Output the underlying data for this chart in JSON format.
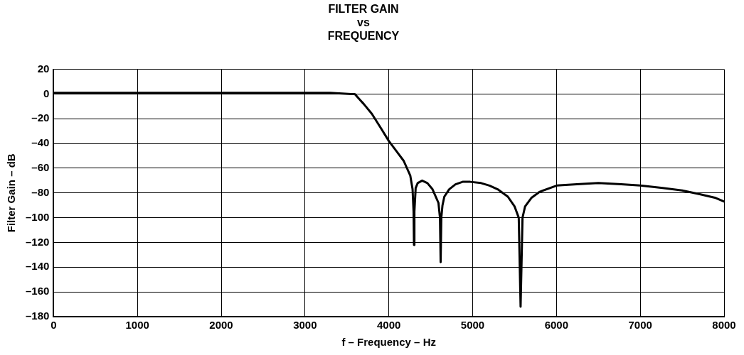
{
  "chart_data": {
    "type": "line",
    "title": "FILTER GAIN\nvs\nFREQUENCY",
    "xlabel": "f – Frequency – Hz",
    "ylabel": "Filter Gain – dB",
    "series": [
      {
        "color": "#000000",
        "x": [
          0,
          500,
          1000,
          2000,
          3000,
          3300,
          3550,
          3594,
          3700,
          3797,
          3900,
          4000,
          4100,
          4177,
          4256,
          4283,
          4295,
          4300,
          4305,
          4320,
          4344,
          4397,
          4460,
          4521,
          4592,
          4610,
          4618,
          4626,
          4640,
          4662,
          4720,
          4795,
          4880,
          4971,
          5100,
          5200,
          5298,
          5420,
          5501,
          5550,
          5572,
          5595,
          5625,
          5700,
          5801,
          6004,
          6243,
          6500,
          6773,
          7000,
          7267,
          7500,
          7709,
          7900,
          8000
        ],
        "values": [
          1,
          1,
          1,
          1,
          1,
          1,
          0,
          0,
          -8,
          -16,
          -27,
          -38,
          -47,
          -54,
          -66,
          -77,
          -95,
          -122,
          -95,
          -76,
          -72,
          -70,
          -72,
          -77,
          -88,
          -100,
          -136,
          -100,
          -90,
          -83,
          -77,
          -73,
          -71,
          -71,
          -72,
          -74,
          -77,
          -83,
          -91,
          -100,
          -172,
          -100,
          -91,
          -84,
          -79,
          -74,
          -73,
          -72,
          -73,
          -74,
          -76,
          -78,
          -81,
          -84,
          -87
        ]
      }
    ],
    "xlim": [
      0,
      8000
    ],
    "xticks": [
      0,
      1000,
      2000,
      3000,
      4000,
      5000,
      6000,
      7000,
      8000
    ],
    "ylim": [
      -180,
      20
    ],
    "yticks": [
      {
        "value": -180,
        "label": "–180"
      },
      {
        "value": -160,
        "label": "–160"
      },
      {
        "value": -140,
        "label": "–140"
      },
      {
        "value": -120,
        "label": "–120"
      },
      {
        "value": -100,
        "label": "–100"
      },
      {
        "value": -80,
        "label": "–80"
      },
      {
        "value": -60,
        "label": "–60"
      },
      {
        "value": -40,
        "label": "–40"
      },
      {
        "value": -20,
        "label": "–20"
      },
      0,
      20
    ],
    "grid": true,
    "legend": false,
    "marker": "none",
    "line_style": "solid"
  }
}
